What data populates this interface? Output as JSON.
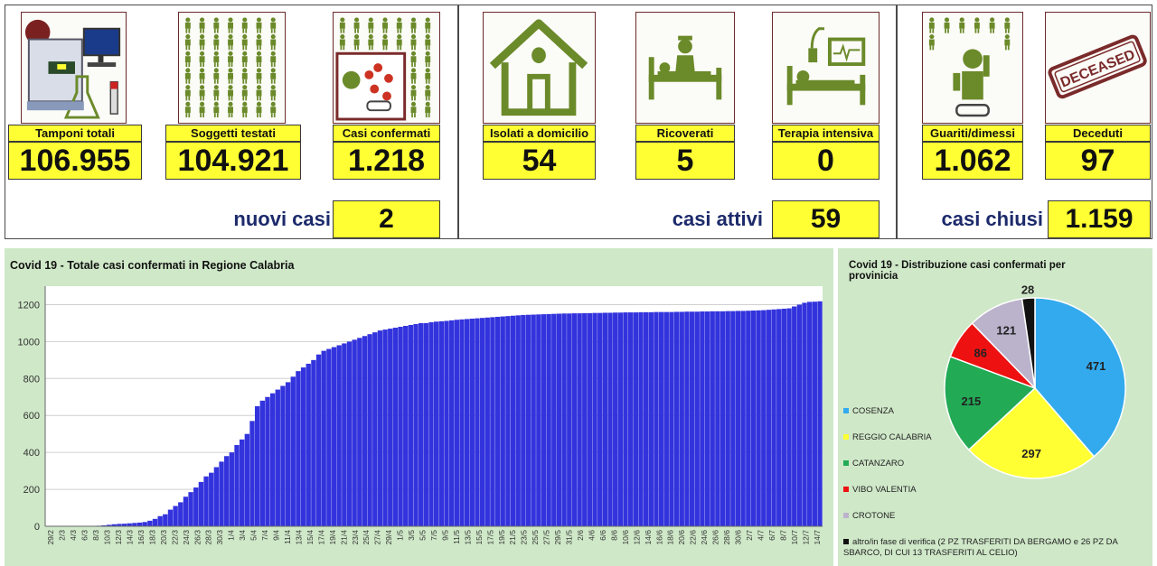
{
  "cards": [
    {
      "label": "Tamponi totali",
      "value": "106.955",
      "icon": "lab-equipment-icon"
    },
    {
      "label": "Soggetti testati",
      "value": "104.921",
      "icon": "people-grid-icon"
    },
    {
      "label": "Casi confermati",
      "value": "1.218",
      "icon": "virus-people-icon"
    },
    {
      "label": "Isolati a domicilio",
      "value": "54",
      "icon": "house-icon"
    },
    {
      "label": "Ricoverati",
      "value": "5",
      "icon": "hospital-bed-icon"
    },
    {
      "label": "Terapia intensiva",
      "value": "0",
      "icon": "intensive-care-icon"
    },
    {
      "label": "Guariti/dimessi",
      "value": "1.062",
      "icon": "recovered-person-icon"
    },
    {
      "label": "Deceduti",
      "value": "97",
      "icon": "deceased-stamp-icon"
    }
  ],
  "deceased_stamp_text": "DECEASED",
  "summary": {
    "nuovi": {
      "label": "nuovi casi",
      "value": "2"
    },
    "attivi": {
      "label": "casi attivi",
      "value": "59"
    },
    "chiusi": {
      "label": "casi chiusi",
      "value": "1.159"
    }
  },
  "colors": {
    "bars": "#3333dd",
    "highlight": "#ffff33",
    "panel": "#cfe8c8",
    "cosenza": "#33aaee",
    "reggio": "#ffff33",
    "catanzaro": "#22aa55",
    "vibo": "#ee1111",
    "crotone": "#bbb3cc",
    "altro": "#111111"
  },
  "chart_data": [
    {
      "type": "bar",
      "title": "Covid 19 - Totale casi confermati in Regione Calabria",
      "ylim": [
        0,
        1300
      ],
      "yticks": [
        0,
        200,
        400,
        600,
        800,
        1000,
        1200
      ],
      "grid": true,
      "tick_labels": [
        "29/2",
        "2/3",
        "4/3",
        "6/3",
        "8/3",
        "10/3",
        "12/3",
        "14/3",
        "16/3",
        "18/3",
        "20/3",
        "22/3",
        "24/3",
        "26/3",
        "28/3",
        "30/3",
        "1/4",
        "3/4",
        "5/4",
        "7/4",
        "9/4",
        "11/4",
        "13/4",
        "15/4",
        "17/4",
        "19/4",
        "21/4",
        "23/4",
        "25/4",
        "27/4",
        "29/4",
        "1/5",
        "3/5",
        "5/5",
        "7/5",
        "9/5",
        "11/5",
        "13/5",
        "15/5",
        "17/5",
        "19/5",
        "21/5",
        "23/5",
        "25/5",
        "27/5",
        "29/5",
        "31/5",
        "2/6",
        "4/6",
        "6/6",
        "8/6",
        "10/6",
        "12/6",
        "14/6",
        "16/6",
        "18/6",
        "20/6",
        "22/6",
        "24/6",
        "26/6",
        "28/6",
        "30/6",
        "2/7",
        "4/7",
        "6/7",
        "8/7",
        "10/7",
        "12/7",
        "14/7"
      ],
      "values": [
        0,
        0,
        0,
        0,
        0,
        0,
        0,
        0,
        1,
        1,
        3,
        5,
        8,
        11,
        13,
        14,
        16,
        18,
        20,
        23,
        30,
        40,
        55,
        65,
        90,
        110,
        130,
        160,
        185,
        210,
        240,
        270,
        290,
        320,
        350,
        380,
        400,
        440,
        470,
        500,
        570,
        650,
        680,
        700,
        720,
        740,
        760,
        780,
        810,
        840,
        860,
        880,
        900,
        930,
        950,
        960,
        970,
        980,
        990,
        1000,
        1010,
        1020,
        1030,
        1040,
        1050,
        1060,
        1065,
        1070,
        1075,
        1080,
        1085,
        1090,
        1095,
        1100,
        1100,
        1105,
        1108,
        1110,
        1112,
        1115,
        1118,
        1120,
        1122,
        1124,
        1126,
        1128,
        1130,
        1132,
        1134,
        1136,
        1138,
        1140,
        1142,
        1144,
        1145,
        1146,
        1147,
        1148,
        1149,
        1150,
        1151,
        1152,
        1152,
        1153,
        1153,
        1154,
        1154,
        1155,
        1155,
        1156,
        1156,
        1157,
        1157,
        1158,
        1158,
        1158,
        1159,
        1159,
        1159,
        1160,
        1160,
        1160,
        1160,
        1161,
        1161,
        1162,
        1162,
        1162,
        1163,
        1163,
        1164,
        1164,
        1164,
        1165,
        1165,
        1166,
        1166,
        1167,
        1168,
        1169,
        1170,
        1172,
        1174,
        1176,
        1178,
        1180,
        1190,
        1200,
        1210,
        1215,
        1216,
        1218
      ]
    },
    {
      "type": "pie",
      "title": "Covid 19 - Distribuzione casi confermati per provinicia",
      "slices": [
        {
          "label": "COSENZA",
          "value": 471,
          "color": "#33aaee"
        },
        {
          "label": "REGGIO CALABRIA",
          "value": 297,
          "color": "#ffff33"
        },
        {
          "label": "CATANZARO",
          "value": 215,
          "color": "#22aa55"
        },
        {
          "label": "VIBO VALENTIA",
          "value": 86,
          "color": "#ee1111"
        },
        {
          "label": "CROTONE",
          "value": 121,
          "color": "#bbb3cc"
        },
        {
          "label": "altro/in fase di verifica (2 PZ TRASFERITI DA BERGAMO e 26 PZ DA SBARCO, DI CUI 13 TRASFERITI AL CELIO)",
          "value": 28,
          "color": "#111111"
        }
      ],
      "legend": "left"
    }
  ]
}
